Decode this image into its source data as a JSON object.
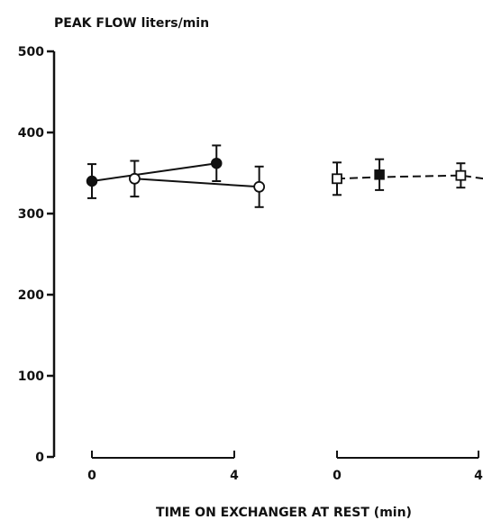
{
  "chart_data": {
    "type": "line",
    "ylabel": "PEAK FLOW liters/min",
    "xlabel": "TIME ON EXCHANGER AT REST (min)",
    "ylim": [
      0,
      500
    ],
    "yticks": [
      0,
      100,
      200,
      300,
      400,
      500
    ],
    "panels": [
      {
        "xlim": [
          0,
          4
        ],
        "xticks": [
          0,
          4
        ],
        "series": [
          {
            "marker": "filled-circle",
            "line": "solid",
            "x": [
              0,
              3.5
            ],
            "y": [
              340,
              362
            ],
            "err": [
              21,
              22
            ]
          },
          {
            "marker": "open-circle",
            "line": "solid",
            "x": [
              1.2,
              4.7
            ],
            "y": [
              343,
              333
            ],
            "err": [
              22,
              25
            ]
          }
        ]
      },
      {
        "xlim": [
          0,
          4
        ],
        "xticks": [
          0,
          4
        ],
        "series": [
          {
            "marker": "open-square",
            "line": "dashed",
            "x": [
              0,
              1.2,
              3.5,
              4.5
            ],
            "y": [
              343,
              345,
              347,
              341
            ],
            "err": [
              20,
              null,
              15,
              null
            ],
            "draw_markers": [
              true,
              false,
              true,
              false
            ]
          },
          {
            "marker": "filled-square",
            "line": "dashed",
            "x": [
              1.2
            ],
            "y": [
              348
            ],
            "err": [
              19
            ]
          }
        ]
      }
    ],
    "grid": false
  }
}
